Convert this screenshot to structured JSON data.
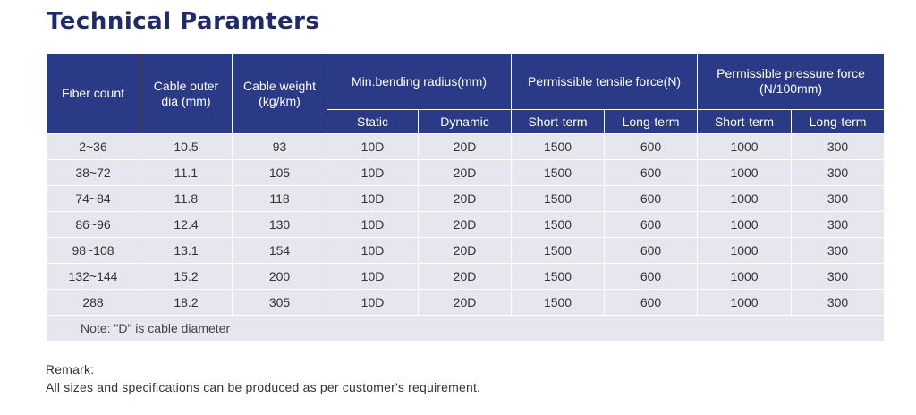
{
  "title": "Technical Paramters",
  "table": {
    "headers": {
      "fiber_count": "Fiber count",
      "outer_dia": "Cable outer dia (mm)",
      "weight": "Cable weight (kg/km)",
      "bending": "Min.bending radius(mm)",
      "tensile": "Permissible tensile force(N)",
      "pressure": "Permissible pressure force (N/100mm)"
    },
    "subheaders": [
      "Static",
      "Dynamic",
      "Short-term",
      "Long-term",
      "Short-term",
      "Long-term"
    ],
    "rows": [
      [
        "2~36",
        "10.5",
        "93",
        "10D",
        "20D",
        "1500",
        "600",
        "1000",
        "300"
      ],
      [
        "38~72",
        "11.1",
        "105",
        "10D",
        "20D",
        "1500",
        "600",
        "1000",
        "300"
      ],
      [
        "74~84",
        "11.8",
        "118",
        "10D",
        "20D",
        "1500",
        "600",
        "1000",
        "300"
      ],
      [
        "86~96",
        "12.4",
        "130",
        "10D",
        "20D",
        "1500",
        "600",
        "1000",
        "300"
      ],
      [
        "98~108",
        "13.1",
        "154",
        "10D",
        "20D",
        "1500",
        "600",
        "1000",
        "300"
      ],
      [
        "132~144",
        "15.2",
        "200",
        "10D",
        "20D",
        "1500",
        "600",
        "1000",
        "300"
      ],
      [
        "288",
        "18.2",
        "305",
        "10D",
        "20D",
        "1500",
        "600",
        "1000",
        "300"
      ]
    ],
    "note": "Note: \"D\" is cable diameter"
  },
  "remark": {
    "label": "Remark:",
    "text": "All sizes and specifications can be produced as per customer's requirement."
  },
  "colors": {
    "title": "#1f2a6d",
    "header_bg": "#2a3a87",
    "row_bg": "#e6e6ee"
  }
}
